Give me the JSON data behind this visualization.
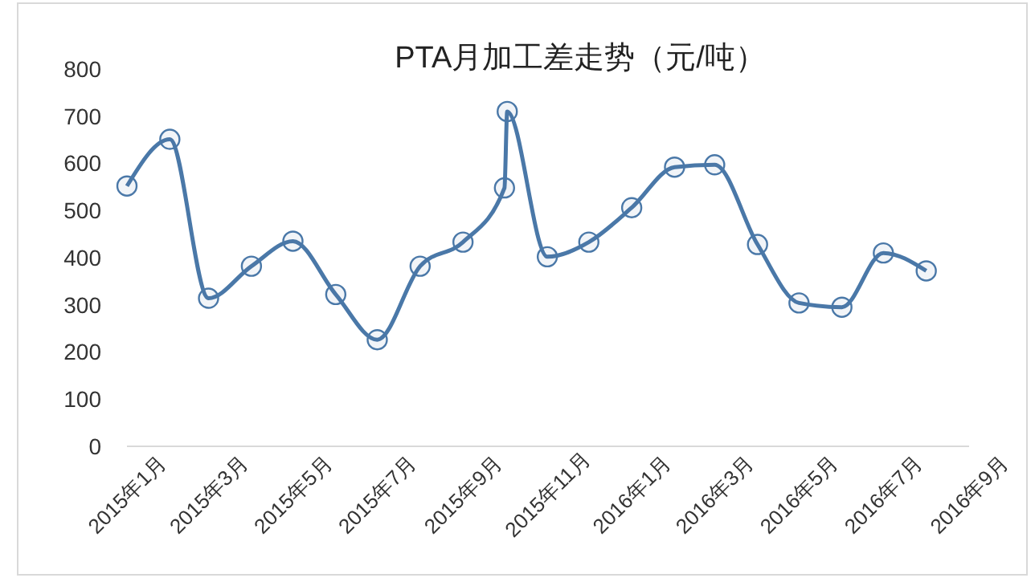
{
  "chart_data": {
    "type": "line",
    "title": "PTA月加工差走势（元/吨）",
    "x": [
      "2015-01",
      "2015-02",
      "2015-03",
      "2015-04",
      "2015-05",
      "2015-06",
      "2015-07",
      "2015-08",
      "2015-09",
      "2015-10",
      "2015-10-03",
      "2015-11",
      "2015-12",
      "2016-01",
      "2016-02",
      "2016-03",
      "2016-04",
      "2016-05",
      "2016-06",
      "2016-07",
      "2016-08"
    ],
    "series": [
      {
        "color": "#4a78a8",
        "values": [
          552,
          651,
          314,
          382,
          435,
          322,
          226,
          382,
          433,
          548,
          710,
          402,
          433,
          506,
          592,
          597,
          428,
          304,
          295,
          410,
          372
        ]
      }
    ],
    "xlim": [
      "2015-01",
      "2016-09"
    ],
    "xticks": [
      {
        "value": "2015-01",
        "label": "2015年1月"
      },
      {
        "value": "2015-03",
        "label": "2015年3月"
      },
      {
        "value": "2015-05",
        "label": "2015年5月"
      },
      {
        "value": "2015-07",
        "label": "2015年7月"
      },
      {
        "value": "2015-09",
        "label": "2015年9月"
      },
      {
        "value": "2015-11",
        "label": "2015年11月"
      },
      {
        "value": "2016-01",
        "label": "2016年1月"
      },
      {
        "value": "2016-03",
        "label": "2016年3月"
      },
      {
        "value": "2016-05",
        "label": "2016年5月"
      },
      {
        "value": "2016-07",
        "label": "2016年7月"
      },
      {
        "value": "2016-09",
        "label": "2016年9月"
      }
    ],
    "ylim": [
      0,
      800
    ],
    "yticks": [
      0,
      100,
      200,
      300,
      400,
      500,
      600,
      700,
      800
    ],
    "grid": false,
    "marker": "circle",
    "line_style": "solid"
  }
}
